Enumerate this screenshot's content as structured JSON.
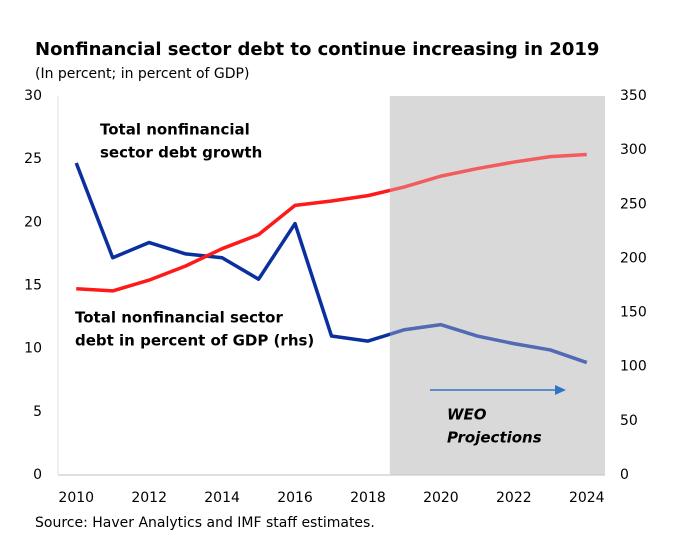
{
  "chart_data": {
    "type": "line",
    "title": "Nonfinancial sector debt to continue increasing in 2019",
    "subtitle": "(In percent; in percent of GDP)",
    "source": "Source: Haver Analytics and IMF staff estimates.",
    "title_color": "#1b75bb",
    "x": [
      2010,
      2011,
      2012,
      2013,
      2014,
      2015,
      2016,
      2017,
      2018,
      2019,
      2020,
      2021,
      2022,
      2023,
      2024
    ],
    "xlim": [
      2009.5,
      2024.5
    ],
    "xticks": [
      2010,
      2012,
      2014,
      2016,
      2018,
      2020,
      2022,
      2024
    ],
    "ylim": [
      0,
      30
    ],
    "yticks": [
      0,
      5,
      10,
      15,
      20,
      25,
      30
    ],
    "y2lim": [
      0,
      350
    ],
    "y2ticks": [
      0,
      50,
      100,
      150,
      200,
      250,
      300,
      350
    ],
    "grid": false,
    "projection_start": 2018.6,
    "projection_color": "#d9d9d9",
    "series": [
      {
        "name": "Total nonfinancial sector debt growth",
        "color": "#0a2f9e",
        "axis": "y",
        "values": [
          24.7,
          17.2,
          18.4,
          17.5,
          17.2,
          15.5,
          19.9,
          11.0,
          10.6,
          11.5,
          11.9,
          11.0,
          10.4,
          9.9,
          8.9
        ]
      },
      {
        "name": "Total nonfinancial sector debt in percent of GDP (rhs)",
        "color": "#ff1a1a",
        "axis": "y2",
        "values": [
          172,
          170,
          180,
          193,
          209,
          222,
          249,
          253,
          258,
          266,
          276,
          283,
          289,
          294,
          296
        ]
      }
    ],
    "annotations": [
      {
        "lines": [
          "Total nonfinancial",
          "sector debt growth"
        ],
        "color": "#0a2f9e"
      },
      {
        "lines": [
          "Total nonfinancial sector",
          "debt in percent of GDP (rhs)"
        ],
        "color": "#ff1a1a"
      },
      {
        "lines": [
          "WEO",
          "Projections"
        ],
        "color": "#000000"
      }
    ]
  }
}
